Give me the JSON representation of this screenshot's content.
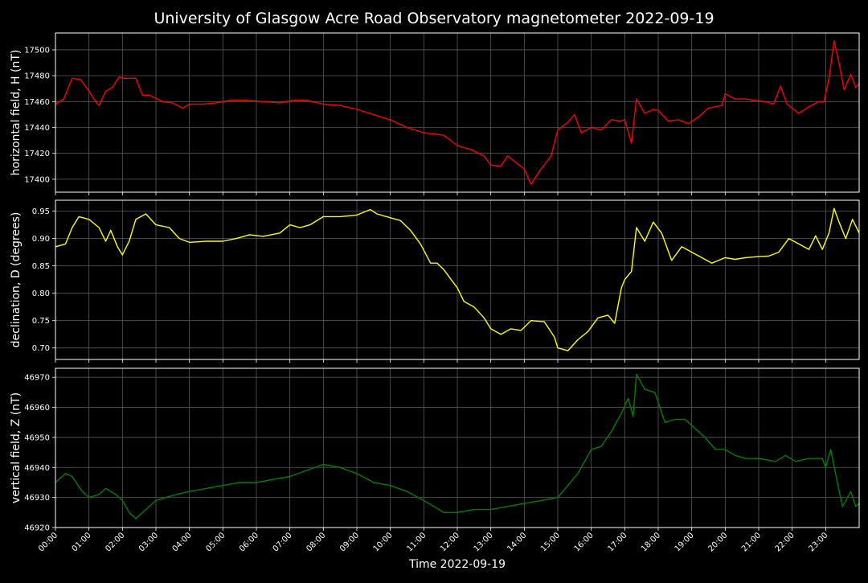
{
  "chart_data": {
    "type": "line",
    "title": "University of Glasgow Acre Road Observatory magnetometer 2022-09-19",
    "xlabel": "Time 2022-09-19",
    "x_ticks": [
      "00:00",
      "01:00",
      "02:00",
      "03:00",
      "04:00",
      "05:00",
      "06:00",
      "07:00",
      "08:00",
      "09:00",
      "10:00",
      "11:00",
      "12:00",
      "13:00",
      "14:00",
      "15:00",
      "16:00",
      "17:00",
      "18:00",
      "19:00",
      "20:00",
      "21:00",
      "22:00",
      "23:00"
    ],
    "xlim": [
      0,
      24
    ],
    "grid": true,
    "background": "#000000",
    "panels": [
      {
        "ylabel": "horizontal field, H (nT)",
        "color": "#ff0000",
        "ylim": [
          17390,
          17513
        ],
        "yticks": [
          17400,
          17420,
          17440,
          17460,
          17480,
          17500
        ],
        "ytick_labels": [
          "17400",
          "17420",
          "17440",
          "17460",
          "17480",
          "17500"
        ],
        "x": [
          0,
          0.25,
          0.5,
          0.75,
          1.0,
          1.2,
          1.3,
          1.5,
          1.7,
          1.9,
          2.05,
          2.4,
          2.6,
          2.8,
          3.2,
          3.5,
          3.8,
          4.0,
          4.4,
          4.8,
          5.2,
          5.7,
          6.2,
          6.7,
          7.1,
          7.5,
          8.0,
          8.5,
          9.0,
          9.5,
          10.0,
          10.5,
          11.0,
          11.3,
          11.6,
          12.0,
          12.4,
          12.8,
          13.0,
          13.3,
          13.5,
          13.8,
          14.0,
          14.2,
          14.5,
          14.8,
          15.0,
          15.3,
          15.5,
          15.7,
          16.0,
          16.3,
          16.6,
          16.85,
          17.0,
          17.2,
          17.35,
          17.6,
          17.85,
          18.0,
          18.3,
          18.6,
          18.9,
          19.2,
          19.5,
          19.9,
          20.0,
          20.3,
          20.6,
          20.9,
          21.2,
          21.45,
          21.65,
          21.85,
          22.2,
          22.5,
          22.8,
          22.95,
          23.1,
          23.25,
          23.4,
          23.55,
          23.75,
          23.9,
          24.0
        ],
        "values": [
          17458,
          17462,
          17478,
          17477,
          17468,
          17460,
          17457,
          17468,
          17471,
          17479,
          17478,
          17478,
          17465,
          17465,
          17460,
          17459,
          17455,
          17458,
          17458,
          17459,
          17461,
          17461,
          17460,
          17459,
          17461,
          17461,
          17458,
          17457,
          17454,
          17450,
          17446,
          17440,
          17436,
          17435,
          17434,
          17426,
          17423,
          17418,
          17411,
          17410,
          17418,
          17412,
          17408,
          17396,
          17408,
          17418,
          17438,
          17444,
          17450,
          17436,
          17440,
          17438,
          17446,
          17445,
          17446,
          17428,
          17462,
          17451,
          17454,
          17453,
          17445,
          17446,
          17443,
          17448,
          17455,
          17457,
          17466,
          17462,
          17462,
          17461,
          17460,
          17458,
          17472,
          17458,
          17451,
          17456,
          17460,
          17460,
          17478,
          17507,
          17490,
          17469,
          17481,
          17471,
          17474
        ]
      },
      {
        "ylabel": "declination, D (degrees)",
        "color": "#ffff00",
        "ylim": [
          0.679,
          0.97
        ],
        "yticks": [
          0.7,
          0.75,
          0.8,
          0.85,
          0.9,
          0.95
        ],
        "ytick_labels": [
          "0.70",
          "0.75",
          "0.80",
          "0.85",
          "0.90",
          "0.95"
        ],
        "x": [
          0,
          0.3,
          0.5,
          0.7,
          1.0,
          1.3,
          1.5,
          1.65,
          1.85,
          2.0,
          2.2,
          2.4,
          2.7,
          3.0,
          3.4,
          3.7,
          4.0,
          4.5,
          5.0,
          5.4,
          5.8,
          6.2,
          6.7,
          7.0,
          7.3,
          7.6,
          8.0,
          8.5,
          9.0,
          9.4,
          9.6,
          10.0,
          10.3,
          10.6,
          10.9,
          11.2,
          11.4,
          11.6,
          12.0,
          12.2,
          12.5,
          12.8,
          13.0,
          13.3,
          13.6,
          13.9,
          14.2,
          14.6,
          14.9,
          15.0,
          15.3,
          15.6,
          15.9,
          16.2,
          16.5,
          16.7,
          16.9,
          17.0,
          17.2,
          17.35,
          17.6,
          17.85,
          18.1,
          18.4,
          18.7,
          19.0,
          19.3,
          19.6,
          20.0,
          20.3,
          20.6,
          21.0,
          21.3,
          21.6,
          21.9,
          22.2,
          22.5,
          22.7,
          22.9,
          23.1,
          23.25,
          23.4,
          23.6,
          23.8,
          24.0
        ],
        "values": [
          0.885,
          0.89,
          0.92,
          0.94,
          0.935,
          0.92,
          0.895,
          0.915,
          0.885,
          0.87,
          0.895,
          0.935,
          0.945,
          0.925,
          0.92,
          0.9,
          0.893,
          0.895,
          0.895,
          0.9,
          0.907,
          0.904,
          0.91,
          0.925,
          0.92,
          0.925,
          0.94,
          0.94,
          0.943,
          0.953,
          0.945,
          0.938,
          0.933,
          0.915,
          0.89,
          0.855,
          0.855,
          0.843,
          0.81,
          0.785,
          0.775,
          0.755,
          0.735,
          0.725,
          0.735,
          0.732,
          0.75,
          0.748,
          0.72,
          0.7,
          0.695,
          0.715,
          0.73,
          0.755,
          0.76,
          0.745,
          0.81,
          0.825,
          0.84,
          0.92,
          0.895,
          0.93,
          0.91,
          0.86,
          0.885,
          0.875,
          0.865,
          0.855,
          0.865,
          0.862,
          0.865,
          0.867,
          0.868,
          0.875,
          0.9,
          0.89,
          0.88,
          0.905,
          0.88,
          0.91,
          0.955,
          0.93,
          0.9,
          0.935,
          0.91
        ]
      },
      {
        "ylabel": "vertical field, Z (nT)",
        "color": "#008000",
        "ylim": [
          46920,
          46973
        ],
        "yticks": [
          46920,
          46930,
          46940,
          46950,
          46960,
          46970
        ],
        "ytick_labels": [
          "46920",
          "46930",
          "46940",
          "46950",
          "46960",
          "46970"
        ],
        "x": [
          0,
          0.3,
          0.5,
          0.8,
          1.0,
          1.3,
          1.5,
          1.8,
          2.0,
          2.2,
          2.4,
          2.7,
          3.0,
          3.3,
          3.6,
          4.0,
          4.5,
          5.0,
          5.5,
          6.0,
          6.5,
          7.0,
          7.5,
          8.0,
          8.5,
          9.0,
          9.5,
          10.0,
          10.5,
          11.0,
          11.3,
          11.6,
          12.0,
          12.5,
          13.0,
          13.5,
          14.0,
          14.5,
          15.0,
          15.3,
          15.6,
          16.0,
          16.3,
          16.6,
          16.9,
          17.1,
          17.25,
          17.35,
          17.6,
          17.9,
          18.2,
          18.5,
          18.8,
          19.1,
          19.4,
          19.7,
          20.0,
          20.3,
          20.6,
          21.0,
          21.5,
          21.8,
          22.1,
          22.5,
          22.9,
          23.0,
          23.15,
          23.35,
          23.5,
          23.75,
          23.9,
          24.0
        ],
        "values": [
          46935,
          46938,
          46937,
          46932,
          46930,
          46931,
          46933,
          46931,
          46929,
          46925,
          46923,
          46926,
          46929,
          46930,
          46931,
          46932,
          46933,
          46934,
          46935,
          46935,
          46936,
          46937,
          46939,
          46941,
          46940,
          46938,
          46935,
          46934,
          46932,
          46929,
          46927,
          46925,
          46925,
          46926,
          46926,
          46927,
          46928,
          46929,
          46930,
          46934,
          46938,
          46946,
          46947,
          46952,
          46958,
          46963,
          46957,
          46971,
          46966,
          46965,
          46955,
          46956,
          46956,
          46953,
          46950,
          46946,
          46946,
          46944,
          46943,
          46943,
          46942,
          46944,
          46942,
          46943,
          46943,
          46940,
          46946,
          46935,
          46927,
          46932,
          46927,
          46928
        ]
      }
    ]
  }
}
